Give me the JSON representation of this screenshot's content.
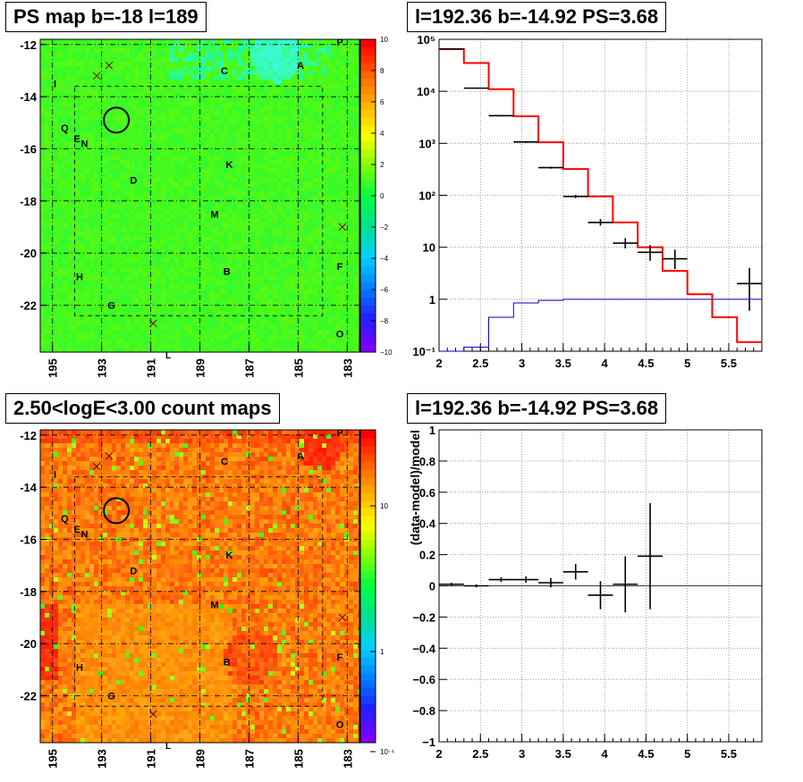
{
  "panels": {
    "ps_map": {
      "title": "PS map b=-18 l=189"
    },
    "spectrum": {
      "title": "l=192.36 b=-14.92 PS=3.68"
    },
    "count_map": {
      "title": "2.50<logE<3.00 count maps"
    },
    "residual": {
      "title": "l=192.36 b=-14.92 PS=3.68"
    }
  },
  "map_axes": {
    "x_ticks": [
      "195",
      "193",
      "191",
      "189",
      "187",
      "185",
      "183"
    ],
    "y_ticks": [
      "-12",
      "-14",
      "-16",
      "-18",
      "-20",
      "-22"
    ],
    "x_label": "L"
  },
  "map_sources": [
    "P",
    "I",
    "C",
    "A",
    "Q",
    "E",
    "N",
    "K",
    "D",
    "M",
    "B",
    "F",
    "H",
    "G",
    "O"
  ],
  "ps_colorbar": {
    "ticks": [
      "10",
      "8",
      "6",
      "4",
      "2",
      "0",
      "−2",
      "−4",
      "−6",
      "−8",
      "−10"
    ],
    "colors": [
      "#8000ff",
      "#2020ff",
      "#0080ff",
      "#00d0ff",
      "#00e090",
      "#00ff40",
      "#80ff00",
      "#ffff00",
      "#ffb000",
      "#ff6000",
      "#ff0000"
    ]
  },
  "count_colorbar": {
    "ticks": [
      "10",
      "1",
      "10⁻¹"
    ],
    "colors": [
      "#8000ff",
      "#2020ff",
      "#0080ff",
      "#00d0ff",
      "#00e090",
      "#00ff40",
      "#80ff00",
      "#ffff00",
      "#ffb000",
      "#ff6000",
      "#ff0000"
    ]
  },
  "chart_data": [
    {
      "type": "heatmap",
      "name": "PS map",
      "x_ticks": [
        195,
        193,
        191,
        189,
        187,
        185,
        183
      ],
      "y_ticks": [
        -12,
        -14,
        -16,
        -18,
        -20,
        -22
      ],
      "xlim": [
        195.5,
        182.5
      ],
      "ylim": [
        -23.8,
        -11.8
      ],
      "color_range": [
        -10,
        10
      ],
      "circle_center": [
        192.4,
        -14.9
      ]
    },
    {
      "type": "line",
      "name": "spectrum",
      "log_y": true,
      "xlim": [
        2,
        5.9
      ],
      "ylim": [
        0.1,
        100000
      ],
      "x_ticks": [
        "2",
        "2.5",
        "3",
        "3.5",
        "4",
        "4.5",
        "5",
        "5.5"
      ],
      "y_ticks": [
        "10⁻¹",
        "1",
        "10",
        "10²",
        "10³",
        "10⁴",
        "10⁵"
      ],
      "red_edges": [
        2,
        2.3,
        2.6,
        2.9,
        3.2,
        3.5,
        3.8,
        4.1,
        4.4,
        4.7,
        5.0,
        5.3,
        5.6,
        5.9
      ],
      "red_values": [
        65000,
        35000,
        11000,
        3300,
        1050,
        320,
        95,
        30,
        10,
        3.5,
        1.25,
        0.45,
        0.15
      ],
      "blue_edges": [
        2,
        2.3,
        2.6,
        2.9,
        3.2,
        3.5,
        3.8,
        4.1,
        4.4,
        4.7,
        5.0,
        5.3,
        5.6,
        5.9
      ],
      "blue_values": [
        0.1,
        0.12,
        0.45,
        0.85,
        0.95,
        1,
        1,
        1,
        1,
        1,
        1,
        1,
        1
      ],
      "data_points": [
        {
          "x": 2.15,
          "xe": 0.15,
          "y": 65000,
          "ylo": 64500,
          "yhi": 65500
        },
        {
          "x": 2.45,
          "xe": 0.15,
          "y": 11500,
          "ylo": 11200,
          "yhi": 11800
        },
        {
          "x": 2.75,
          "xe": 0.15,
          "y": 3400,
          "ylo": 3300,
          "yhi": 3500
        },
        {
          "x": 3.05,
          "xe": 0.15,
          "y": 1060,
          "ylo": 1020,
          "yhi": 1100
        },
        {
          "x": 3.35,
          "xe": 0.15,
          "y": 340,
          "ylo": 325,
          "yhi": 355
        },
        {
          "x": 3.65,
          "xe": 0.15,
          "y": 95,
          "ylo": 88,
          "yhi": 102
        },
        {
          "x": 3.95,
          "xe": 0.15,
          "y": 30,
          "ylo": 26,
          "yhi": 35
        },
        {
          "x": 4.25,
          "xe": 0.15,
          "y": 12,
          "ylo": 9.5,
          "yhi": 15
        },
        {
          "x": 4.55,
          "xe": 0.15,
          "y": 8,
          "ylo": 5.5,
          "yhi": 11
        },
        {
          "x": 4.85,
          "xe": 0.15,
          "y": 6,
          "ylo": 3.8,
          "yhi": 9
        },
        {
          "x": 5.75,
          "xe": 0.15,
          "y": 2,
          "ylo": 0.6,
          "yhi": 4
        }
      ]
    },
    {
      "type": "heatmap",
      "name": "count map",
      "x_ticks": [
        195,
        193,
        191,
        189,
        187,
        185,
        183
      ],
      "y_ticks": [
        -12,
        -14,
        -16,
        -18,
        -20,
        -22
      ],
      "xlim": [
        195.5,
        182.5
      ],
      "ylim": [
        -23.8,
        -11.8
      ],
      "color_scale": "log",
      "circle_center": [
        192.4,
        -14.9
      ]
    },
    {
      "type": "scatter",
      "name": "residual",
      "ylabel": "(data-model)/model",
      "xlim": [
        2,
        5.9
      ],
      "ylim": [
        -1,
        1
      ],
      "x_ticks": [
        "2",
        "2.5",
        "3",
        "3.5",
        "4",
        "4.5",
        "5",
        "5.5"
      ],
      "y_ticks": [
        "−1",
        "−0.8",
        "−0.6",
        "−0.4",
        "−0.2",
        "0",
        "0.2",
        "0.4",
        "0.6",
        "0.8",
        "1"
      ],
      "points": [
        {
          "x": 2.15,
          "xe": 0.15,
          "y": 0.01,
          "ye": 0.01
        },
        {
          "x": 2.45,
          "xe": 0.15,
          "y": 0.0,
          "ye": 0.01
        },
        {
          "x": 2.75,
          "xe": 0.15,
          "y": 0.04,
          "ye": 0.015
        },
        {
          "x": 3.05,
          "xe": 0.15,
          "y": 0.04,
          "ye": 0.02
        },
        {
          "x": 3.35,
          "xe": 0.15,
          "y": 0.02,
          "ye": 0.03
        },
        {
          "x": 3.65,
          "xe": 0.15,
          "y": 0.09,
          "ye": 0.05
        },
        {
          "x": 3.95,
          "xe": 0.15,
          "y": -0.06,
          "ye": 0.09
        },
        {
          "x": 4.25,
          "xe": 0.15,
          "y": 0.01,
          "ye": 0.18
        },
        {
          "x": 4.55,
          "xe": 0.15,
          "y": 0.19,
          "ye": 0.34
        }
      ]
    }
  ]
}
